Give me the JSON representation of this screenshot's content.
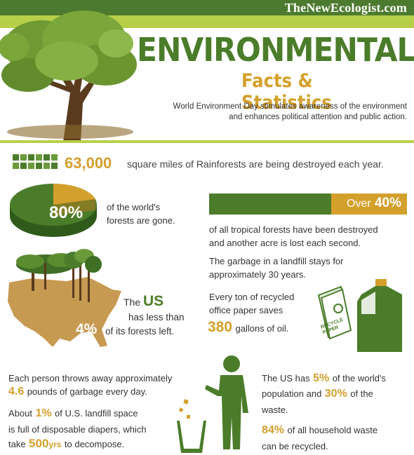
{
  "header": {
    "site": "TheNewEcologist.com",
    "title": "ENVIRONMENTAL",
    "subtitle": "Facts & Statistics",
    "intro_line1": "World Environment Day stimulates awareness of the environment",
    "intro_line2": "and enhances political attention and public action."
  },
  "facts": {
    "rainforest_number": "63,000",
    "rainforest_text": "square miles of Rainforests are being destroyed each year.",
    "forests_percent": "80%",
    "forests_text_1": "of the world's",
    "forests_text_2": "forests are gone.",
    "tropical_label": "Over",
    "tropical_percent": "40%",
    "tropical_text_1": "of all tropical forests have been destroyed",
    "tropical_text_2": "and another acre is lost each second.",
    "landfill_text_1": "The garbage in a landfill stays for",
    "landfill_text_2": "approximately 30 years.",
    "us_the": "The",
    "us_us": "US",
    "us_text_1": "has less than",
    "us_percent": "4%",
    "us_text_2": "of its forests left.",
    "paper_text_1": "Every ton of recycled",
    "paper_text_2": "office paper saves",
    "paper_number": "380",
    "paper_text_3": "gallons of oil.",
    "paper_icon_label_1": "RECYCLE",
    "paper_icon_label_2": "PAPER",
    "garbage_text_1": "Each person throws away approximately",
    "garbage_number": "4.6",
    "garbage_text_2": "pounds of garbage every day.",
    "diaper_text_1": "About",
    "diaper_percent": "1%",
    "diaper_text_2": "of U.S. landfill space",
    "diaper_text_3": "is full of disposable diapers, which",
    "diaper_text_4": "take",
    "diaper_number": "500",
    "diaper_unit": "yrs",
    "diaper_text_5": "to decompose.",
    "waste_text_1": "The US has",
    "waste_percent_1": "5%",
    "waste_text_2": "of the world's",
    "waste_text_3": "population and",
    "waste_percent_2": "30%",
    "waste_text_4": "of the",
    "waste_text_5": "waste.",
    "recycle_percent": "84%",
    "recycle_text_1": "of all household waste",
    "recycle_text_2": "can be recycled."
  },
  "colors": {
    "dark_green": "#4b7c2a",
    "light_green": "#b8cf4a",
    "gold": "#d4a02c",
    "tan": "#c79a52"
  },
  "icons": [
    "tree-icon",
    "pie-chart-icon",
    "us-map-icon",
    "recycle-paper-icon",
    "bottle-icon",
    "person-icon",
    "trash-bin-icon"
  ]
}
